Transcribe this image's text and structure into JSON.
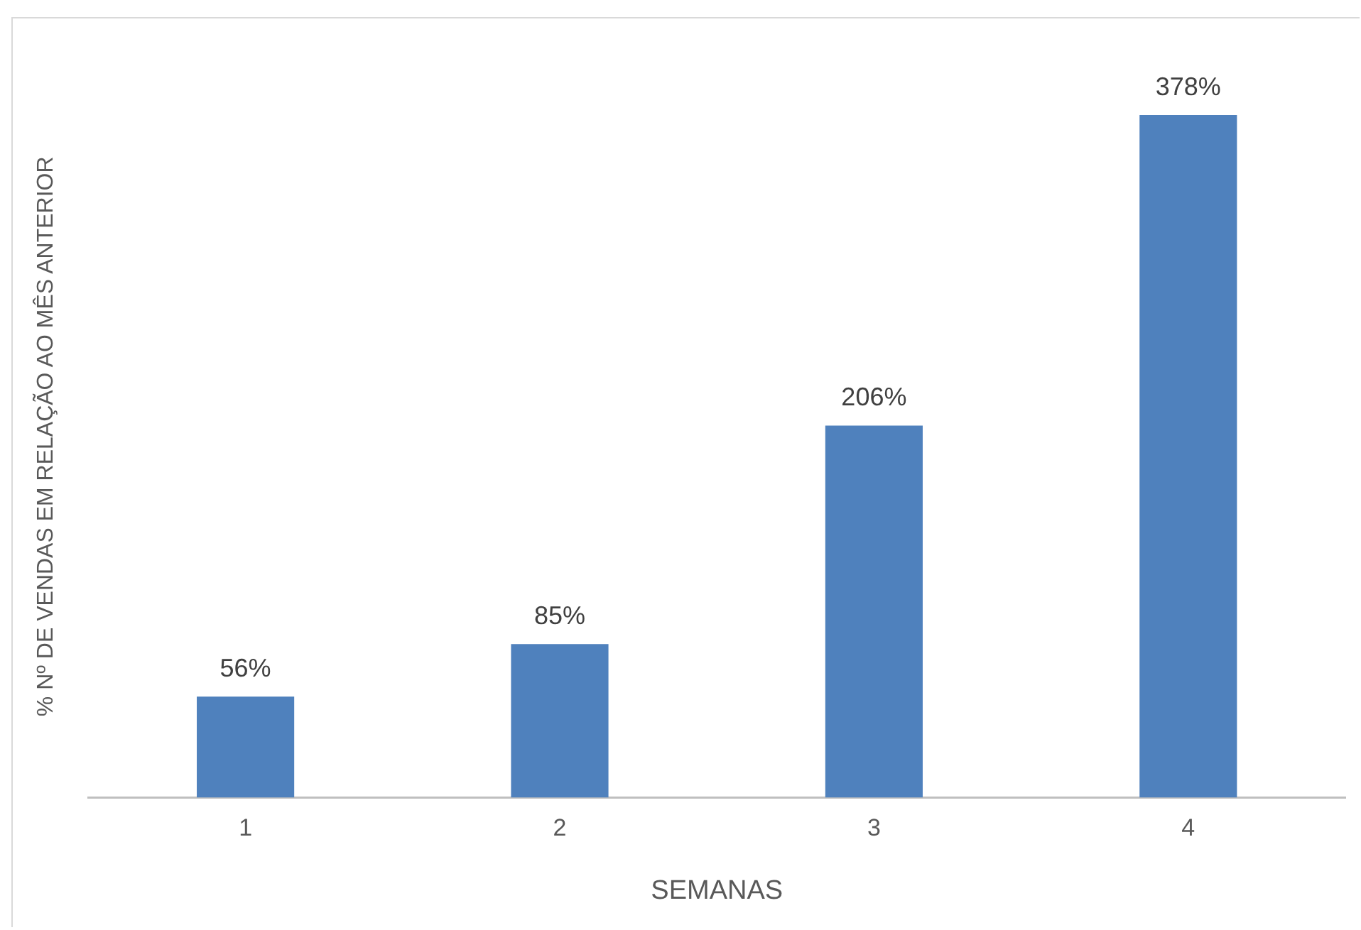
{
  "chart_data": {
    "type": "bar",
    "xlabel": "SEMANAS",
    "ylabel": "% Nº DE VENDAS EM RELAÇÃO AO MÊS ANTERIOR",
    "categories": [
      "1",
      "2",
      "3",
      "4"
    ],
    "values": [
      56,
      85,
      206,
      378
    ],
    "value_labels": [
      "56%",
      "85%",
      "206%",
      "378%"
    ],
    "color": "#4f81bd",
    "grid": false,
    "legend": false
  }
}
